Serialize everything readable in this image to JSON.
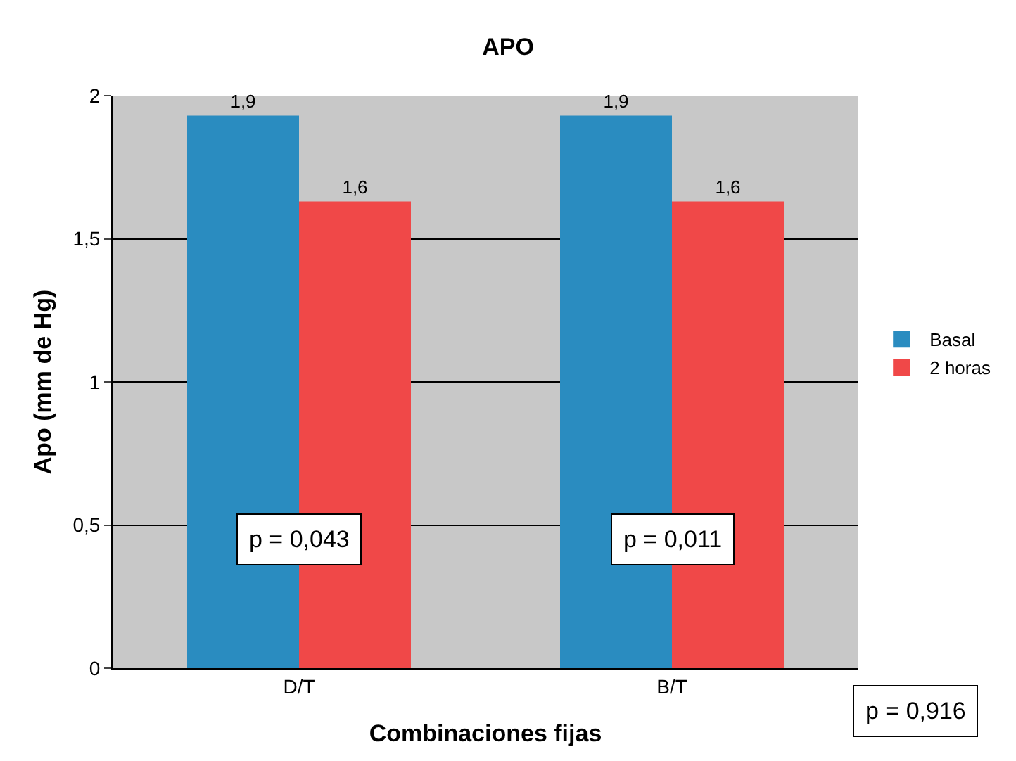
{
  "chart_data": {
    "type": "bar",
    "title": "APO",
    "xlabel": "Combinaciones fijas",
    "ylabel": "Apo (mm de Hg)",
    "categories": [
      "D/T",
      "B/T"
    ],
    "series": [
      {
        "name": "Basal",
        "color": "#2a8cc0",
        "values": [
          1.93,
          1.93
        ],
        "value_labels": [
          "1,9",
          "1,9"
        ]
      },
      {
        "name": "2 horas",
        "color": "#f04848",
        "values": [
          1.63,
          1.63
        ],
        "value_labels": [
          "1,6",
          "1,6"
        ]
      }
    ],
    "ylim": [
      0,
      2
    ],
    "yticks": [
      0,
      {
        "value": 0.5,
        "label": "0,5"
      },
      1,
      {
        "value": 1.5,
        "label": "1,5"
      },
      2
    ],
    "grid": "y",
    "legend": "right",
    "annotations": [
      "p = 0,043",
      "p = 0,011",
      "p = 0,916"
    ]
  }
}
